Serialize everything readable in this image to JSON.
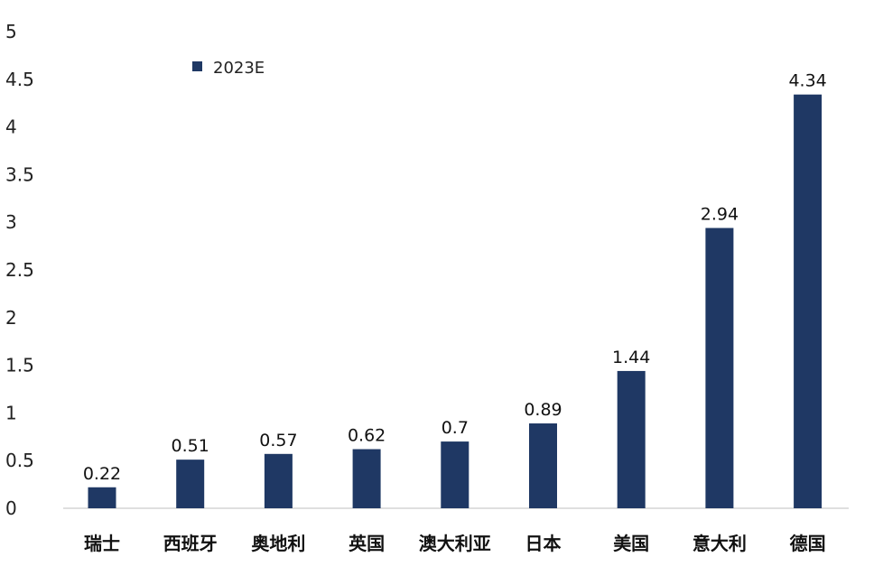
{
  "chart_data": {
    "type": "bar",
    "categories": [
      "瑞士",
      "西班牙",
      "奥地利",
      "英国",
      "澳大利亚",
      "日本",
      "美国",
      "意大利",
      "德国"
    ],
    "series": [
      {
        "name": "2023E",
        "values": [
          0.22,
          0.51,
          0.57,
          0.62,
          0.7,
          0.89,
          1.44,
          2.94,
          4.34
        ]
      }
    ],
    "data_labels": [
      "0.22",
      "0.51",
      "0.57",
      "0.62",
      "0.7",
      "0.89",
      "1.44",
      "2.94",
      "4.34"
    ],
    "y_ticks": [
      "0",
      "0.5",
      "1",
      "1.5",
      "2",
      "2.5",
      "3",
      "3.5",
      "4",
      "4.5",
      "5"
    ],
    "ylim": [
      0,
      5
    ],
    "grid": false,
    "legend_position": "top-left",
    "colors": {
      "bar": "#1f3864",
      "axis": "#bfbfbf"
    }
  }
}
